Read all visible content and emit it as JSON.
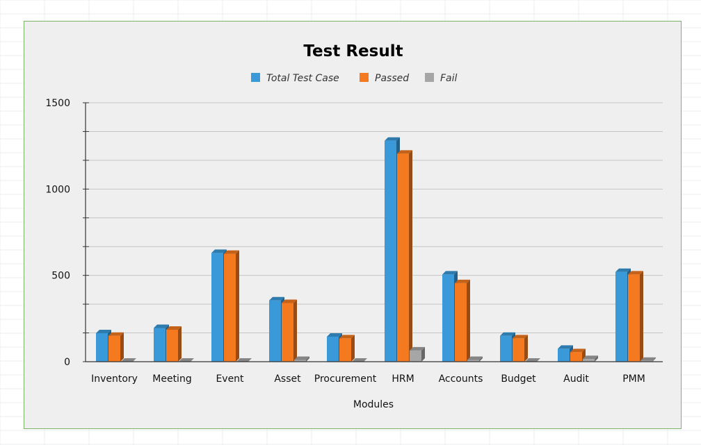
{
  "chart_data": {
    "type": "bar",
    "title": "Test Result",
    "xlabel": "Modules",
    "ylabel": "",
    "ylim": [
      0,
      1500
    ],
    "yticks": [
      0,
      500,
      1000,
      1500
    ],
    "grid": true,
    "legend_position": "top-center",
    "categories": [
      "Inventory",
      "Meeting",
      "Event",
      "Asset",
      "Procurement",
      "HRM",
      "Accounts",
      "Budget",
      "Audit",
      "PMM"
    ],
    "series": [
      {
        "name": "Total Test Case",
        "color": "#3a9ad9",
        "values": [
          165,
          195,
          630,
          355,
          145,
          1280,
          505,
          150,
          75,
          520
        ]
      },
      {
        "name": "Passed",
        "color": "#f57a1f",
        "values": [
          150,
          185,
          625,
          340,
          135,
          1205,
          455,
          135,
          55,
          505
        ]
      },
      {
        "name": "Fail",
        "color": "#a6a6a6",
        "values": [
          0,
          0,
          0,
          10,
          0,
          65,
          10,
          0,
          15,
          5
        ]
      }
    ]
  }
}
